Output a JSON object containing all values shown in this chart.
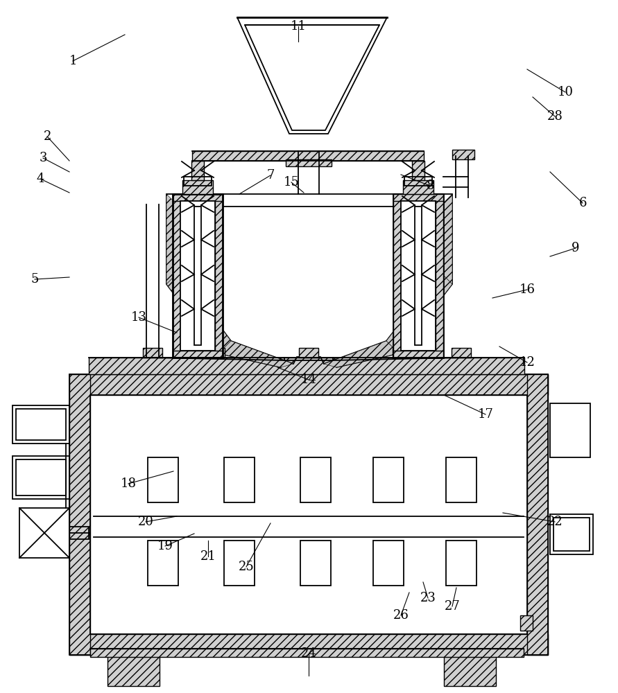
{
  "bg_color": "#ffffff",
  "line_color": "#000000",
  "labels_data": [
    [
      "1",
      105,
      88
    ],
    [
      "2",
      68,
      197
    ],
    [
      "3",
      62,
      228
    ],
    [
      "4",
      58,
      258
    ],
    [
      "5",
      50,
      403
    ],
    [
      "6",
      840,
      293
    ],
    [
      "7",
      390,
      253
    ],
    [
      "8",
      620,
      268
    ],
    [
      "9",
      830,
      358
    ],
    [
      "10",
      815,
      133
    ],
    [
      "11",
      430,
      38
    ],
    [
      "12",
      760,
      523
    ],
    [
      "13",
      200,
      458
    ],
    [
      "14",
      445,
      548
    ],
    [
      "15",
      420,
      263
    ],
    [
      "16",
      760,
      418
    ],
    [
      "17",
      700,
      598
    ],
    [
      "18",
      185,
      698
    ],
    [
      "19",
      238,
      788
    ],
    [
      "20",
      210,
      753
    ],
    [
      "21",
      300,
      803
    ],
    [
      "22",
      800,
      753
    ],
    [
      "23",
      617,
      863
    ],
    [
      "24",
      445,
      943
    ],
    [
      "25",
      355,
      818
    ],
    [
      "26",
      578,
      888
    ],
    [
      "27",
      652,
      875
    ],
    [
      "28",
      800,
      168
    ]
  ]
}
